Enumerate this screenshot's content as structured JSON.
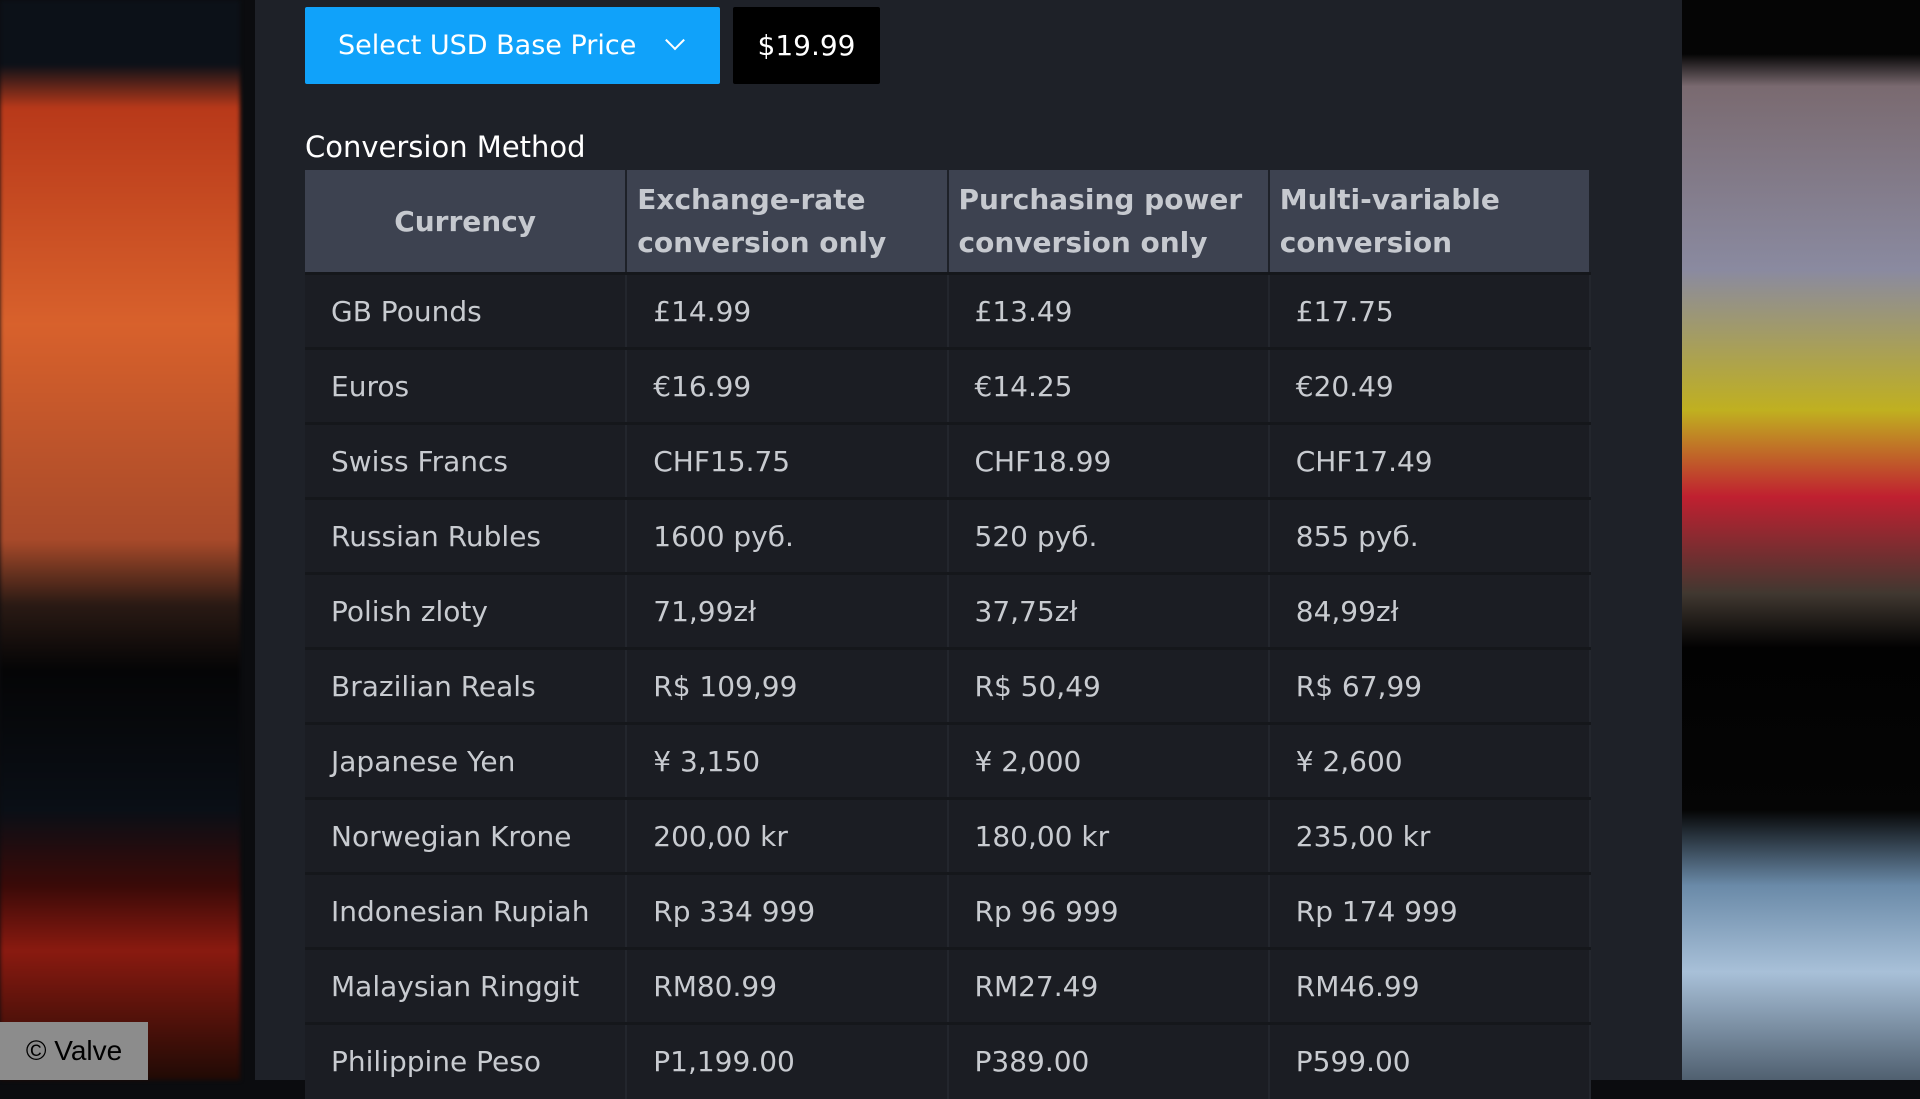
{
  "selector": {
    "label": "Select USD Base Price",
    "icon": "chevron-down-icon",
    "price": "$19.99"
  },
  "section_title": "Conversion Method",
  "table": {
    "headers": [
      "Currency",
      "Exchange-rate conversion only",
      "Purchasing power conversion only",
      "Multi-variable conversion"
    ],
    "rows": [
      [
        "GB Pounds",
        "£14.99",
        "£13.49",
        "£17.75"
      ],
      [
        "Euros",
        "€16.99",
        "€14.25",
        "€20.49"
      ],
      [
        "Swiss Francs",
        "CHF15.75",
        "CHF18.99",
        "CHF17.49"
      ],
      [
        "Russian Rubles",
        "1600 руб.",
        "520 руб.",
        "855 руб."
      ],
      [
        "Polish zloty",
        "71,99zł",
        "37,75zł",
        "84,99zł"
      ],
      [
        "Brazilian Reals",
        "R$ 109,99",
        "R$ 50,49",
        "R$ 67,99"
      ],
      [
        "Japanese Yen",
        "¥ 3,150",
        "¥ 2,000",
        "¥ 2,600"
      ],
      [
        "Norwegian Krone",
        "200,00 kr",
        "180,00 kr",
        "235,00 kr"
      ],
      [
        "Indonesian Rupiah",
        "Rp 334 999",
        "Rp 96 999",
        "Rp 174 999"
      ],
      [
        "Malaysian Ringgit",
        "RM80.99",
        "RM27.49",
        "RM46.99"
      ],
      [
        "Philippine Peso",
        "P1,199.00",
        "P389.00",
        "P599.00"
      ]
    ]
  },
  "credit": "© Valve",
  "colors": {
    "accent": "#10a2fa",
    "panel": "#1e2128",
    "header": "#3d4250",
    "row": "#1b1d23"
  }
}
